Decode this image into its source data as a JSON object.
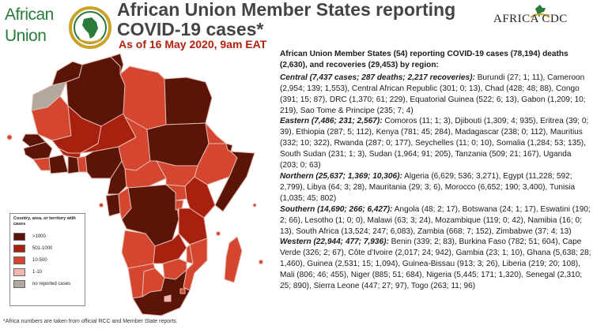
{
  "logos": {
    "au_line1": "African",
    "au_line2": "Union",
    "cdc_text": "AFRICA CDC"
  },
  "header": {
    "title": "African Union Member States reporting COVID-19 cases*",
    "subtitle": "As of 16 May 2020, 9am EAT"
  },
  "map": {
    "colors": {
      "gt1000": "#5a1408",
      "r501_1000": "#a8200e",
      "r10_500": "#d4462f",
      "r1_10": "#f0b8b0",
      "no_reports": "#b2a99c",
      "border": "#e4b9ae",
      "sea": "#ffffff"
    },
    "legend": {
      "title": "Country, area, or territory with cases",
      "items": [
        {
          "label": ">1000",
          "color": "#5a1408"
        },
        {
          "label": "501-1000",
          "color": "#a8200e"
        },
        {
          "label": "10-500",
          "color": "#d4462f"
        },
        {
          "label": "1-10",
          "color": "#f0b8b0"
        },
        {
          "label": "no reported cases",
          "color": "#b2a99c"
        }
      ]
    }
  },
  "footnote": "*Africa numbers are taken from official RCC and Member State reports.",
  "summary": {
    "intro": "African Union Member States (54) reporting COVID-19 cases (78,194) deaths (2,630), and recoveries (29,453) by region:",
    "regions": [
      {
        "head": "Central (7,437 cases; 287 deaths; 2,217 recoveries):",
        "body": " Burundi (27; 1; 11), Cameroon (2,954; 139; 1,553), Central African Republic (301; 0; 13), Chad (428; 48; 88), Congo (391; 15; 87), DRC (1,370; 61; 229), Equatorial Guinea (522; 6; 13), Gabon (1,209; 10; 219), Sao Tome & Principe (235; 7; 4)"
      },
      {
        "head": "Eastern (7,486; 231; 2,567):",
        "body": " Comoros (11; 1; 3), Djibouti (1,309; 4; 935), Eritrea (39; 0; 39), Ethiopia (287; 5; 112), Kenya (781; 45; 284), Madagascar (238; 0; 112), Mauritius (332; 10; 322), Rwanda (287; 0; 177), Seychelles (11; 0; 10), Somalia (1,284; 53; 135), South Sudan (231; 1; 3), Sudan (1,964; 91; 205), Tanzania (509; 21; 167), Uganda (203; 0; 63)"
      },
      {
        "head": "Northern (25,637; 1,369; 10,306):",
        "body": " Algeria (6,629; 536; 3,271), Egypt (11,228; 592; 2,799), Libya (64; 3; 28), Mauritania (29; 3; 6), Morocco (6,652; 190; 3,400), Tunisia (1,035; 45; 802)"
      },
      {
        "head": "Southern (14,690; 266; 6,427):",
        "body": " Angola (48; 2; 17), Botswana (24; 1; 17), Eswatini (190; 2; 66), Lesotho (1; 0; 0), Malawi (63; 3; 24), Mozambique (119; 0; 42), Namibia (16; 0; 13), South Africa (13,524; 247; 6,083), Zambia (668; 7; 152), Zimbabwe (37; 4; 13)"
      },
      {
        "head": "Western (22,944; 477; 7,936):",
        "body": " Benin (339; 2; 83), Burkina Faso (782; 51; 604), Cape Verde (326; 2; 67), Côte d'Ivoire (2,017; 24; 942), Gambia (23; 1; 10), Ghana (5,638; 28; 1,460), Guinea (2,531; 15; 1,094), Guinea-Bissau (913; 3; 26), Liberia (219; 20; 108), Mali (806; 46; 455), Niger (885; 51; 684), Nigeria (5,445; 171; 1,320), Senegal (2,310; 25; 890), Sierra Leone (447; 27; 97), Togo (263; 11; 96)"
      }
    ]
  }
}
